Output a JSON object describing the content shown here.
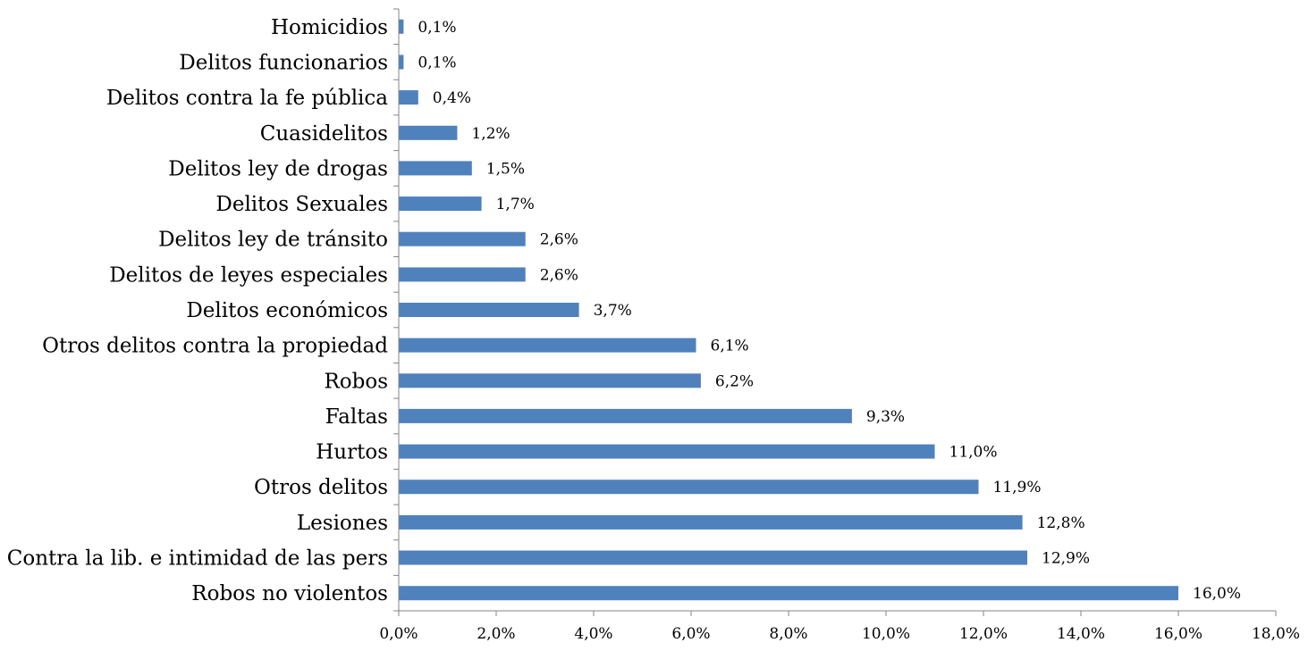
{
  "chart_data": {
    "type": "bar",
    "orientation": "horizontal",
    "title": "",
    "xlabel": "",
    "ylabel": "",
    "categories": [
      "Homicidios",
      "Delitos funcionarios",
      "Delitos contra la fe pública",
      "Cuasidelitos",
      "Delitos ley de drogas",
      "Delitos Sexuales",
      "Delitos ley de tránsito",
      "Delitos de leyes especiales",
      "Delitos económicos",
      "Otros delitos contra la propiedad",
      "Robos",
      "Faltas",
      "Hurtos",
      "Otros delitos",
      "Lesiones",
      "Contra la lib. e intimidad de las pers",
      "Robos no violentos"
    ],
    "values": [
      0.1,
      0.1,
      0.4,
      1.2,
      1.5,
      1.7,
      2.6,
      2.6,
      3.7,
      6.1,
      6.2,
      9.3,
      11.0,
      11.9,
      12.8,
      12.9,
      16.0
    ],
    "data_labels": [
      "0,1%",
      "0,1%",
      "0,4%",
      "1,2%",
      "1,5%",
      "1,7%",
      "2,6%",
      "2,6%",
      "3,7%",
      "6,1%",
      "6,2%",
      "9,3%",
      "11,0%",
      "11,9%",
      "12,8%",
      "12,9%",
      "16,0%"
    ],
    "xlim": [
      0,
      18
    ],
    "xticks": [
      0,
      2,
      4,
      6,
      8,
      10,
      12,
      14,
      16,
      18
    ],
    "xtick_labels": [
      "0,0%",
      "2,0%",
      "4,0%",
      "6,0%",
      "8,0%",
      "10,0%",
      "12,0%",
      "14,0%",
      "16,0%",
      "18,0%"
    ],
    "grid": false,
    "legend": "none",
    "bar_color": "#4F81BD",
    "axis_color": "#868686"
  }
}
